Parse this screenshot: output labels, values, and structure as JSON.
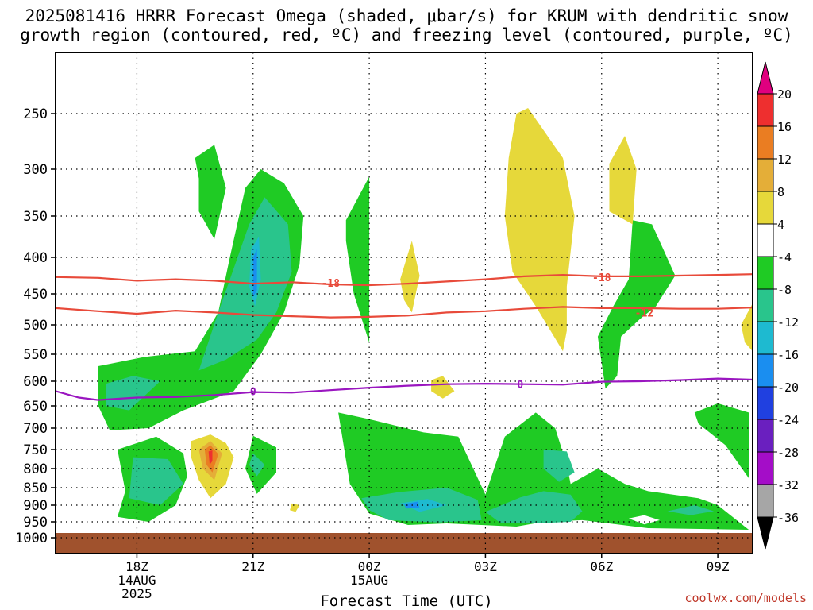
{
  "title": {
    "line1": "2025081416 HRRR Forecast Omega (shaded, μbar/s) for KRUM with dendritic snow",
    "line2": "growth region (contoured, red, ºC) and freezing level (contoured, purple, ºC)"
  },
  "credit": "coolwx.com/models",
  "chart_data": {
    "type": "heatmap",
    "title": "2025081416 HRRR Forecast Omega (shaded, μbar/s) for KRUM with dendritic snow growth region (contoured, red, ºC) and freezing level (contoured, purple, ºC)",
    "xlabel": "Forecast Time (UTC)",
    "ylabel": "",
    "x_ticks": [
      {
        "hour": 18,
        "label": "18Z",
        "sub": [
          "14AUG",
          "2025"
        ]
      },
      {
        "hour": 21,
        "label": "21Z",
        "sub": []
      },
      {
        "hour": 24,
        "label": "00Z",
        "sub": [
          "15AUG"
        ]
      },
      {
        "hour": 27,
        "label": "03Z",
        "sub": []
      },
      {
        "hour": 30,
        "label": "06Z",
        "sub": []
      },
      {
        "hour": 33,
        "label": "09Z",
        "sub": []
      }
    ],
    "x_range_hours": [
      15.9,
      33.9
    ],
    "y_ticks": [
      250,
      300,
      350,
      400,
      450,
      500,
      550,
      600,
      650,
      700,
      750,
      800,
      850,
      900,
      950,
      1000
    ],
    "y_range_hPa": [
      190,
      1010
    ],
    "ground_top_hPa": 985,
    "isotherm_labels": [
      {
        "value": "-18",
        "hour": 23.0,
        "p": 435
      },
      {
        "value": "-18",
        "hour": 30.0,
        "p": 427
      },
      {
        "value": "-12",
        "hour": 31.1,
        "p": 480
      },
      {
        "value": "0",
        "hour": 21.0,
        "p": 620
      },
      {
        "value": "0",
        "hour": 27.9,
        "p": 606
      }
    ],
    "series": [
      {
        "name": "-18",
        "x": [
          15.9,
          17,
          18,
          19,
          20,
          21,
          22,
          23,
          24,
          25,
          26,
          27,
          28,
          29,
          30,
          31,
          32,
          33,
          33.9
        ],
        "y": [
          427,
          428,
          432,
          430,
          432,
          436,
          434,
          437,
          438,
          436,
          433,
          430,
          426,
          424,
          426,
          426,
          425,
          424,
          423
        ]
      },
      {
        "name": "-12",
        "x": [
          15.9,
          17,
          18,
          19,
          20,
          21,
          22,
          23,
          24,
          25,
          26,
          27,
          28,
          29,
          30,
          31,
          32,
          33,
          33.9
        ],
        "y": [
          473,
          478,
          482,
          477,
          480,
          484,
          486,
          488,
          487,
          485,
          480,
          478,
          474,
          471,
          473,
          473,
          474,
          474,
          472
        ]
      },
      {
        "name": "0",
        "x": [
          15.9,
          16.5,
          17,
          18,
          19,
          20,
          21,
          22,
          23,
          24,
          25,
          26,
          27,
          28,
          29,
          30,
          31,
          32,
          33,
          33.9
        ],
        "y": [
          620,
          633,
          638,
          633,
          632,
          628,
          622,
          623,
          618,
          613,
          609,
          606,
          605,
          606,
          607,
          601,
          600,
          598,
          595,
          597
        ]
      }
    ],
    "regions": [
      {
        "band": "-8 to -4",
        "pts": [
          [
            17.0,
            572
          ],
          [
            18.2,
            555
          ],
          [
            19.5,
            545
          ],
          [
            20.1,
            480
          ],
          [
            20.4,
            400
          ],
          [
            20.8,
            320
          ],
          [
            21.2,
            300
          ],
          [
            21.8,
            315
          ],
          [
            22.3,
            350
          ],
          [
            22.2,
            410
          ],
          [
            21.8,
            480
          ],
          [
            21.2,
            550
          ],
          [
            20.5,
            620
          ],
          [
            19.2,
            660
          ],
          [
            18.3,
            700
          ],
          [
            17.3,
            705
          ],
          [
            17.0,
            650
          ]
        ]
      },
      {
        "band": "-8 to -4",
        "pts": [
          [
            17.5,
            750
          ],
          [
            18.5,
            720
          ],
          [
            19.2,
            760
          ],
          [
            19.3,
            820
          ],
          [
            19.0,
            900
          ],
          [
            18.3,
            950
          ],
          [
            17.5,
            935
          ],
          [
            17.7,
            860
          ]
        ]
      },
      {
        "band": "-8 to -4",
        "pts": [
          [
            19.5,
            290
          ],
          [
            20.0,
            278
          ],
          [
            20.3,
            320
          ],
          [
            20.0,
            378
          ],
          [
            19.6,
            345
          ],
          [
            19.6,
            310
          ]
        ]
      },
      {
        "band": "-8 to -4",
        "pts": [
          [
            21.0,
            718
          ],
          [
            21.6,
            745
          ],
          [
            21.6,
            810
          ],
          [
            21.1,
            868
          ],
          [
            20.8,
            800
          ]
        ]
      },
      {
        "band": "-8 to -4",
        "pts": [
          [
            23.4,
            355
          ],
          [
            24.0,
            308
          ],
          [
            24.0,
            420
          ],
          [
            24.0,
            530
          ],
          [
            23.6,
            450
          ],
          [
            23.4,
            380
          ]
        ]
      },
      {
        "band": "-8 to -4",
        "pts": [
          [
            23.2,
            665
          ],
          [
            24.0,
            680
          ],
          [
            25.4,
            710
          ],
          [
            26.3,
            720
          ],
          [
            27.0,
            870
          ],
          [
            27.5,
            720
          ],
          [
            28.3,
            665
          ],
          [
            28.8,
            700
          ],
          [
            29.1,
            790
          ],
          [
            29.2,
            840
          ],
          [
            29.9,
            800
          ],
          [
            30.6,
            840
          ],
          [
            31.2,
            860
          ],
          [
            32.5,
            880
          ],
          [
            33.0,
            900
          ],
          [
            33.8,
            975
          ],
          [
            31.2,
            970
          ],
          [
            29.5,
            945
          ],
          [
            28.5,
            950
          ],
          [
            27.8,
            965
          ],
          [
            26.0,
            955
          ],
          [
            25.0,
            960
          ],
          [
            24.0,
            925
          ],
          [
            23.5,
            840
          ]
        ]
      },
      {
        "band": "-8 to -4",
        "pts": [
          [
            30.8,
            355
          ],
          [
            31.3,
            360
          ],
          [
            31.9,
            425
          ],
          [
            31.4,
            470
          ],
          [
            31.0,
            490
          ],
          [
            30.5,
            520
          ],
          [
            30.4,
            590
          ],
          [
            30.1,
            615
          ],
          [
            29.9,
            520
          ],
          [
            30.3,
            470
          ],
          [
            30.7,
            430
          ]
        ]
      },
      {
        "band": "-8 to -4",
        "pts": [
          [
            32.4,
            665
          ],
          [
            33.0,
            645
          ],
          [
            33.8,
            665
          ],
          [
            33.8,
            825
          ],
          [
            33.2,
            740
          ],
          [
            32.5,
            690
          ]
        ]
      },
      {
        "band": "-12 to -8",
        "pts": [
          [
            20.9,
            360
          ],
          [
            21.3,
            330
          ],
          [
            21.9,
            360
          ],
          [
            22.0,
            420
          ],
          [
            21.6,
            480
          ],
          [
            21.1,
            525
          ],
          [
            20.3,
            560
          ],
          [
            19.6,
            580
          ],
          [
            20.1,
            480
          ]
        ]
      },
      {
        "band": "-12 to -8",
        "pts": [
          [
            17.2,
            605
          ],
          [
            17.9,
            590
          ],
          [
            18.6,
            600
          ],
          [
            17.8,
            660
          ],
          [
            17.2,
            650
          ]
        ]
      },
      {
        "band": "-12 to -8",
        "pts": [
          [
            17.9,
            770
          ],
          [
            18.8,
            775
          ],
          [
            19.2,
            840
          ],
          [
            18.6,
            900
          ],
          [
            17.8,
            880
          ]
        ]
      },
      {
        "band": "-12 to -8",
        "pts": [
          [
            21.0,
            760
          ],
          [
            21.3,
            790
          ],
          [
            21.1,
            820
          ],
          [
            20.9,
            790
          ]
        ]
      },
      {
        "band": "-12 to -8",
        "pts": [
          [
            23.8,
            880
          ],
          [
            24.8,
            862
          ],
          [
            26.0,
            850
          ],
          [
            26.8,
            885
          ],
          [
            26.9,
            945
          ],
          [
            25.8,
            952
          ],
          [
            24.5,
            945
          ],
          [
            24.0,
            915
          ]
        ]
      },
      {
        "band": "-12 to -8",
        "pts": [
          [
            27.0,
            920
          ],
          [
            27.9,
            878
          ],
          [
            28.5,
            860
          ],
          [
            29.2,
            870
          ],
          [
            29.5,
            918
          ],
          [
            29.2,
            950
          ],
          [
            28.2,
            955
          ],
          [
            27.4,
            955
          ]
        ]
      },
      {
        "band": "-12 to -8",
        "pts": [
          [
            28.5,
            750
          ],
          [
            29.1,
            755
          ],
          [
            29.3,
            810
          ],
          [
            28.9,
            835
          ],
          [
            28.5,
            800
          ]
        ]
      },
      {
        "band": "-12 to -8",
        "pts": [
          [
            31.7,
            918
          ],
          [
            32.4,
            900
          ],
          [
            32.9,
            918
          ],
          [
            32.3,
            930
          ]
        ]
      },
      {
        "band": "-16 to -12",
        "pts": [
          [
            20.95,
            390
          ],
          [
            21.15,
            375
          ],
          [
            21.2,
            430
          ],
          [
            21.05,
            470
          ],
          [
            20.9,
            440
          ]
        ]
      },
      {
        "band": "-16 to -12",
        "pts": [
          [
            24.8,
            895
          ],
          [
            25.5,
            882
          ],
          [
            26.0,
            900
          ],
          [
            25.3,
            920
          ]
        ]
      },
      {
        "band": "-20 to -16",
        "pts": [
          [
            21.0,
            400
          ],
          [
            21.1,
            390
          ],
          [
            21.1,
            445
          ],
          [
            21.0,
            455
          ]
        ]
      },
      {
        "band": "-20 to -16",
        "pts": [
          [
            24.9,
            897
          ],
          [
            25.25,
            890
          ],
          [
            25.3,
            908
          ],
          [
            24.95,
            910
          ]
        ]
      },
      {
        "band": "4 to 8",
        "pts": [
          [
            27.8,
            250
          ],
          [
            28.1,
            245
          ],
          [
            29.0,
            290
          ],
          [
            29.3,
            350
          ],
          [
            29.1,
            440
          ],
          [
            29.1,
            510
          ],
          [
            29.0,
            545
          ],
          [
            28.3,
            470
          ],
          [
            27.7,
            420
          ],
          [
            27.5,
            350
          ],
          [
            27.6,
            290
          ]
        ]
      },
      {
        "band": "4 to 8",
        "pts": [
          [
            30.2,
            295
          ],
          [
            30.6,
            270
          ],
          [
            30.9,
            300
          ],
          [
            30.8,
            360
          ],
          [
            30.2,
            345
          ]
        ]
      },
      {
        "band": "4 to 8",
        "pts": [
          [
            24.8,
            430
          ],
          [
            25.1,
            380
          ],
          [
            25.3,
            425
          ],
          [
            25.1,
            480
          ],
          [
            24.9,
            460
          ]
        ]
      },
      {
        "band": "4 to 8",
        "pts": [
          [
            25.6,
            598
          ],
          [
            25.9,
            590
          ],
          [
            26.2,
            620
          ],
          [
            25.9,
            635
          ],
          [
            25.6,
            620
          ]
        ]
      },
      {
        "band": "4 to 8",
        "pts": [
          [
            33.6,
            500
          ],
          [
            33.9,
            465
          ],
          [
            33.9,
            545
          ],
          [
            33.7,
            530
          ]
        ]
      },
      {
        "band": "4 to 8",
        "pts": [
          [
            22.0,
            895
          ],
          [
            22.2,
            900
          ],
          [
            22.1,
            920
          ],
          [
            21.95,
            915
          ]
        ]
      },
      {
        "band": "4 to 8",
        "pts": [
          [
            19.4,
            730
          ],
          [
            19.9,
            715
          ],
          [
            20.3,
            735
          ],
          [
            20.5,
            770
          ],
          [
            20.3,
            840
          ],
          [
            19.9,
            880
          ],
          [
            19.6,
            830
          ],
          [
            19.4,
            770
          ]
        ]
      },
      {
        "band": "8 to 12",
        "pts": [
          [
            19.6,
            750
          ],
          [
            19.9,
            730
          ],
          [
            20.2,
            760
          ],
          [
            20.0,
            830
          ],
          [
            19.7,
            800
          ]
        ]
      },
      {
        "band": "12 to 16",
        "pts": [
          [
            19.75,
            750
          ],
          [
            19.9,
            740
          ],
          [
            20.1,
            762
          ],
          [
            19.95,
            810
          ],
          [
            19.8,
            790
          ]
        ]
      },
      {
        "band": "16 to 20",
        "pts": [
          [
            19.85,
            755
          ],
          [
            19.95,
            752
          ],
          [
            19.95,
            780
          ],
          [
            19.88,
            790
          ]
        ]
      },
      {
        "band": "-4 to 4",
        "pts": [
          [
            30.7,
            940
          ],
          [
            31.1,
            930
          ],
          [
            31.5,
            945
          ],
          [
            31.1,
            958
          ]
        ]
      }
    ],
    "colorbar": {
      "labels": [
        "20",
        "16",
        "12",
        "8",
        "4",
        "-4",
        "-8",
        "-12",
        "-16",
        "-20",
        "-24",
        "-28",
        "-32",
        "-36"
      ],
      "bands": [
        {
          "range": "16 to 20",
          "color": "#ee2f2f"
        },
        {
          "range": "12 to 16",
          "color": "#ea7d22"
        },
        {
          "range": "8 to 12",
          "color": "#e4ae38"
        },
        {
          "range": "4 to 8",
          "color": "#e6d83a"
        },
        {
          "range": "-4 to 4",
          "color": "#ffffff"
        },
        {
          "range": "-8 to -4",
          "color": "#1fcb24"
        },
        {
          "range": "-12 to -8",
          "color": "#29c58c"
        },
        {
          "range": "-16 to -12",
          "color": "#1ebad0"
        },
        {
          "range": "-20 to -16",
          "color": "#1a8ef0"
        },
        {
          "range": "-24 to -20",
          "color": "#2040e0"
        },
        {
          "range": "-28 to -24",
          "color": "#6a1fbf"
        },
        {
          "range": "-32 to -28",
          "color": "#a40dc8"
        },
        {
          "range": "-36 to -32",
          "color": "#a6a6a6"
        }
      ],
      "top_arrow": "#e0007f",
      "bottom_arrow": "#000000"
    },
    "colors": {
      "dgz_contour": "#e84a3a",
      "freezing_contour": "#9a16c0",
      "ground": "#a0522d",
      "grid": "#000000"
    },
    "grid": true
  }
}
